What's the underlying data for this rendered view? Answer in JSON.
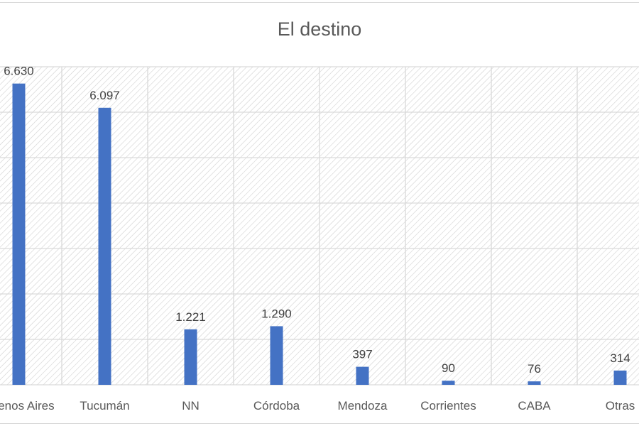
{
  "chart_data": {
    "type": "bar",
    "title": "El destino",
    "categories": [
      "Buenos Aires",
      "Tucumán",
      "NN",
      "Córdoba",
      "Mendoza",
      "Corrientes",
      "CABA",
      "Otras"
    ],
    "values": [
      6630,
      6097,
      1221,
      1290,
      397,
      90,
      76,
      314
    ],
    "data_labels": [
      "6.630",
      "6.097",
      "1.221",
      "1.290",
      "397",
      "90",
      "76",
      "314"
    ],
    "ylim": [
      0,
      7000
    ],
    "y_gridline_step": 1000,
    "grid": true,
    "legend": "none",
    "colors": {
      "bar": "#4472c4",
      "grid": "#d9d9d9",
      "hatch": "#d0d0d0"
    }
  }
}
